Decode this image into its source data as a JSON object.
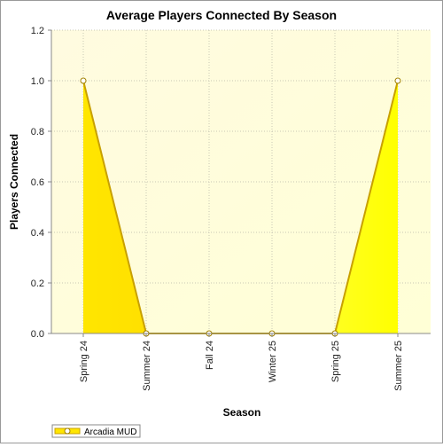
{
  "chart_data": {
    "type": "area",
    "title": "Average Players Connected By Season",
    "xlabel": "Season",
    "ylabel": "Players Connected",
    "categories": [
      "Spring 24",
      "Summer 24",
      "Fall 24",
      "Winter 25",
      "Spring 25",
      "Summer 25"
    ],
    "series": [
      {
        "name": "Arcadia MUD",
        "values": [
          1.0,
          0.0,
          0.0,
          0.0,
          0.0,
          1.0
        ]
      }
    ],
    "ylim": [
      0,
      1.2
    ],
    "yticks": [
      "0.0",
      "0.2",
      "0.4",
      "0.6",
      "0.8",
      "1.0",
      "1.2"
    ],
    "grid": true,
    "legend_position": "bottom-left",
    "colors": {
      "area_fill": "#ffe600",
      "line": "#c8a000",
      "plot_bg": "#fffde6",
      "grid": "#c8c8b4"
    }
  }
}
